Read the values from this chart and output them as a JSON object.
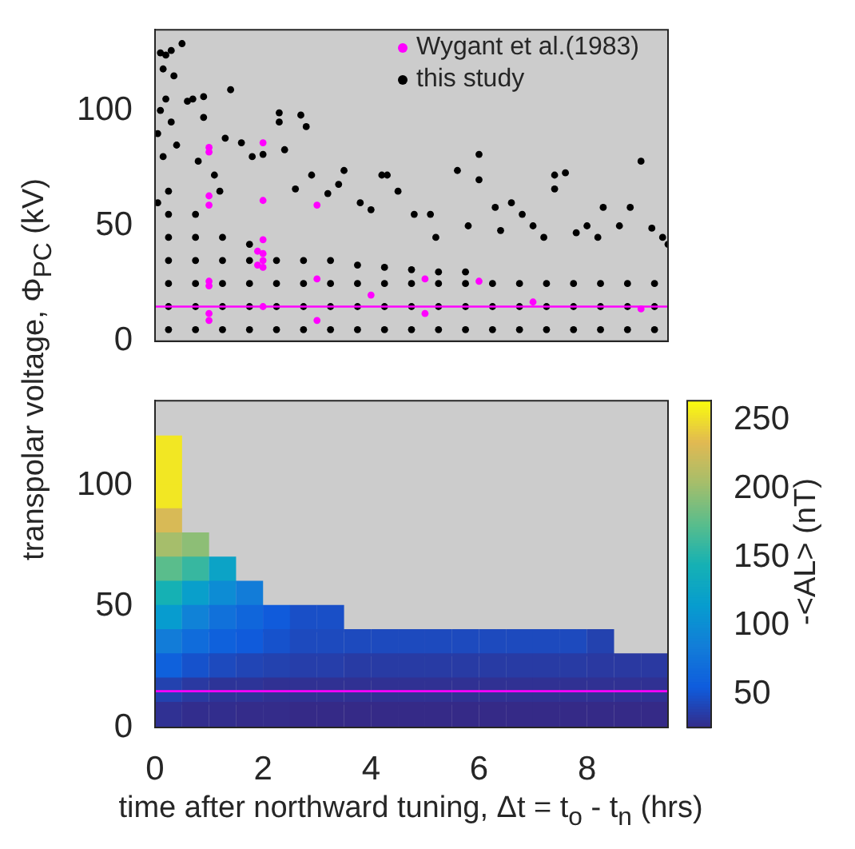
{
  "chart_data": [
    {
      "type": "scatter",
      "ylabel": "transpolar voltage, Φ$_{PC}$ (kV)",
      "xlim": [
        0,
        9.5
      ],
      "xticks": [
        0,
        2,
        4,
        6,
        8
      ],
      "ylim": [
        0,
        135
      ],
      "yticks": [
        0,
        50,
        100
      ],
      "tick_labels": "y",
      "legend": "top right",
      "marker": "circle",
      "series": [
        {
          "name": "Wygant et al.(1983)",
          "color": "#ff00ff",
          "x": [
            1,
            1,
            1,
            1,
            1,
            1,
            1,
            1,
            2,
            2,
            2,
            1.9,
            2,
            2,
            1.9,
            2,
            2,
            3,
            3,
            3,
            4,
            5,
            5,
            6,
            7,
            9
          ],
          "values": [
            84,
            82,
            63,
            59,
            26,
            24,
            12,
            9,
            86,
            61,
            44,
            39,
            38,
            35,
            33,
            32,
            15,
            59,
            27,
            9,
            20,
            27,
            12,
            26,
            17,
            14
          ]
        },
        {
          "name": "this study",
          "color": "#000000",
          "x": [
            0.05,
            0.1,
            0.15,
            0.2,
            0.3,
            0.35,
            0.5,
            0.05,
            0.1,
            0.15,
            0.2,
            0.3,
            0.4,
            0.6,
            0.7,
            0.9,
            0.9,
            1.4,
            1.3,
            1.6,
            1.8,
            2.0,
            2.3,
            2.3,
            2.4,
            2.7,
            2.8,
            2.9,
            3.5,
            3.4,
            3.8,
            4.2,
            4.3,
            4.5,
            4.8,
            5.1,
            5.2,
            5.6,
            6.0,
            6.0,
            6.3,
            6.6,
            6.8,
            7.0,
            7.4,
            7.4,
            7.6,
            7.8,
            8.0,
            8.3,
            8.6,
            8.8,
            9.0,
            9.2,
            9.5,
            9.4,
            8.2,
            7.2,
            6.4,
            5.8,
            4.0,
            3.2,
            2.6,
            1.1,
            1.2,
            0.8,
            0.25,
            0.25,
            0.25,
            0.25,
            0.25,
            0.25,
            0.25,
            0.75,
            0.75,
            0.75,
            0.75,
            0.75,
            0.75,
            1.25,
            1.25,
            1.25,
            1.25,
            1.25,
            1.75,
            1.75,
            1.75,
            1.75,
            1.75,
            2.25,
            2.25,
            2.25,
            2.25,
            2.75,
            2.75,
            2.75,
            2.75,
            3.25,
            3.25,
            3.25,
            3.25,
            3.75,
            3.75,
            3.75,
            3.75,
            4.25,
            4.25,
            4.25,
            4.25,
            4.75,
            4.75,
            4.75,
            4.75,
            5.25,
            5.25,
            5.25,
            5.25,
            5.75,
            5.75,
            5.75,
            5.75,
            6.25,
            6.25,
            6.25,
            6.75,
            6.75,
            6.75,
            7.25,
            7.25,
            7.25,
            7.75,
            7.75,
            7.75,
            8.25,
            8.25,
            8.25,
            8.75,
            8.75,
            8.75,
            9.25,
            9.25,
            9.25
          ],
          "values": [
            90,
            125,
            118,
            124,
            126,
            115,
            129,
            60,
            100,
            80,
            105,
            95,
            85,
            104,
            105,
            97,
            106,
            109,
            88,
            86,
            80,
            81,
            99,
            95,
            83,
            98,
            93,
            72,
            74,
            68,
            60,
            72,
            72,
            65,
            55,
            55,
            45,
            74,
            70,
            81,
            58,
            60,
            55,
            50,
            72,
            66,
            73,
            47,
            50,
            58,
            50,
            58,
            78,
            49,
            42,
            45,
            45,
            45,
            48,
            50,
            57,
            64,
            66,
            72,
            65,
            78,
            5,
            15,
            25,
            35,
            45,
            55,
            65,
            5,
            15,
            25,
            35,
            45,
            55,
            5,
            15,
            25,
            35,
            45,
            5,
            15,
            25,
            35,
            42,
            5,
            15,
            25,
            35,
            5,
            15,
            25,
            35,
            5,
            15,
            25,
            35,
            5,
            15,
            25,
            33,
            5,
            15,
            25,
            32,
            5,
            15,
            25,
            31,
            5,
            15,
            25,
            30,
            5,
            15,
            25,
            30,
            5,
            15,
            25,
            5,
            15,
            25,
            5,
            15,
            25,
            5,
            15,
            25,
            5,
            15,
            25,
            5,
            15,
            25,
            5,
            15,
            25
          ]
        }
      ],
      "ref_lines": [
        {
          "axis": "y",
          "value": 15,
          "color": "#ff00ff"
        }
      ]
    },
    {
      "type": "scatter",
      "xlabel": "time after northward tuning, Δt = t$_{o}$ - t$_{n}$  (hrs)",
      "xlim": [
        0,
        9.5
      ],
      "xticks": [
        0,
        2,
        4,
        6,
        8
      ],
      "ylim": [
        0,
        135
      ],
      "yticks": [
        0,
        50,
        100
      ],
      "marker": "square",
      "series": [
        {
          "x": [
            0.25,
            0.25,
            0.25,
            0.25,
            0.25,
            0.25,
            0.25,
            0.25,
            0.25,
            0.25,
            0.25,
            0.25,
            0.75,
            0.75,
            0.75,
            0.75,
            0.75,
            0.75,
            0.75,
            0.75,
            1.25,
            1.25,
            1.25,
            1.25,
            1.25,
            1.25,
            1.25,
            1.75,
            1.75,
            1.75,
            1.75,
            1.75,
            1.75,
            2.25,
            2.25,
            2.25,
            2.25,
            2.25,
            2.75,
            2.75,
            2.75,
            2.75,
            2.75,
            3.25,
            3.25,
            3.25,
            3.25,
            3.25,
            3.75,
            3.75,
            3.75,
            3.75,
            4.25,
            4.25,
            4.25,
            4.25,
            4.75,
            4.75,
            4.75,
            4.75,
            5.25,
            5.25,
            5.25,
            5.25,
            5.75,
            5.75,
            5.75,
            5.75,
            6.25,
            6.25,
            6.25,
            6.25,
            6.75,
            6.75,
            6.75,
            6.75,
            7.25,
            7.25,
            7.25,
            7.25,
            7.75,
            7.75,
            7.75,
            7.75,
            8.25,
            8.25,
            8.25,
            8.25,
            8.75,
            8.75,
            8.75,
            9.25,
            9.25,
            9.25
          ],
          "values": [
            115,
            105,
            95,
            85,
            75,
            65,
            55,
            45,
            35,
            25,
            15,
            5,
            75,
            65,
            55,
            45,
            35,
            25,
            15,
            5,
            65,
            55,
            45,
            35,
            25,
            15,
            5,
            55,
            45,
            35,
            25,
            15,
            5,
            45,
            35,
            25,
            15,
            5,
            45,
            35,
            25,
            15,
            5,
            45,
            35,
            25,
            15,
            5,
            35,
            25,
            15,
            5,
            35,
            25,
            15,
            5,
            35,
            25,
            15,
            5,
            35,
            25,
            15,
            5,
            35,
            25,
            15,
            5,
            35,
            25,
            15,
            5,
            35,
            25,
            15,
            5,
            35,
            25,
            15,
            5,
            35,
            25,
            15,
            5,
            35,
            25,
            15,
            5,
            25,
            15,
            5,
            25,
            15,
            5
          ],
          "cvalues": [
            255,
            255,
            255,
            230,
            205,
            175,
            145,
            115,
            85,
            60,
            40,
            30,
            195,
            160,
            120,
            90,
            70,
            50,
            35,
            28,
            125,
            100,
            75,
            60,
            45,
            32,
            28,
            85,
            65,
            55,
            42,
            32,
            27,
            55,
            50,
            40,
            30,
            27,
            48,
            45,
            38,
            30,
            26,
            48,
            45,
            38,
            30,
            26,
            45,
            36,
            30,
            26,
            45,
            36,
            30,
            26,
            45,
            36,
            30,
            26,
            45,
            36,
            30,
            26,
            45,
            36,
            30,
            26,
            45,
            36,
            30,
            26,
            45,
            36,
            30,
            26,
            45,
            36,
            30,
            26,
            45,
            36,
            30,
            26,
            40,
            35,
            30,
            26,
            35,
            30,
            26,
            35,
            30,
            26
          ]
        }
      ],
      "clim": [
        26,
        264
      ],
      "cticks": [
        50,
        100,
        150,
        200,
        250
      ],
      "clabel": "-<AL> (nT)",
      "ref_lines": [
        {
          "axis": "y",
          "value": 15,
          "color": "#ff00ff"
        }
      ]
    }
  ]
}
